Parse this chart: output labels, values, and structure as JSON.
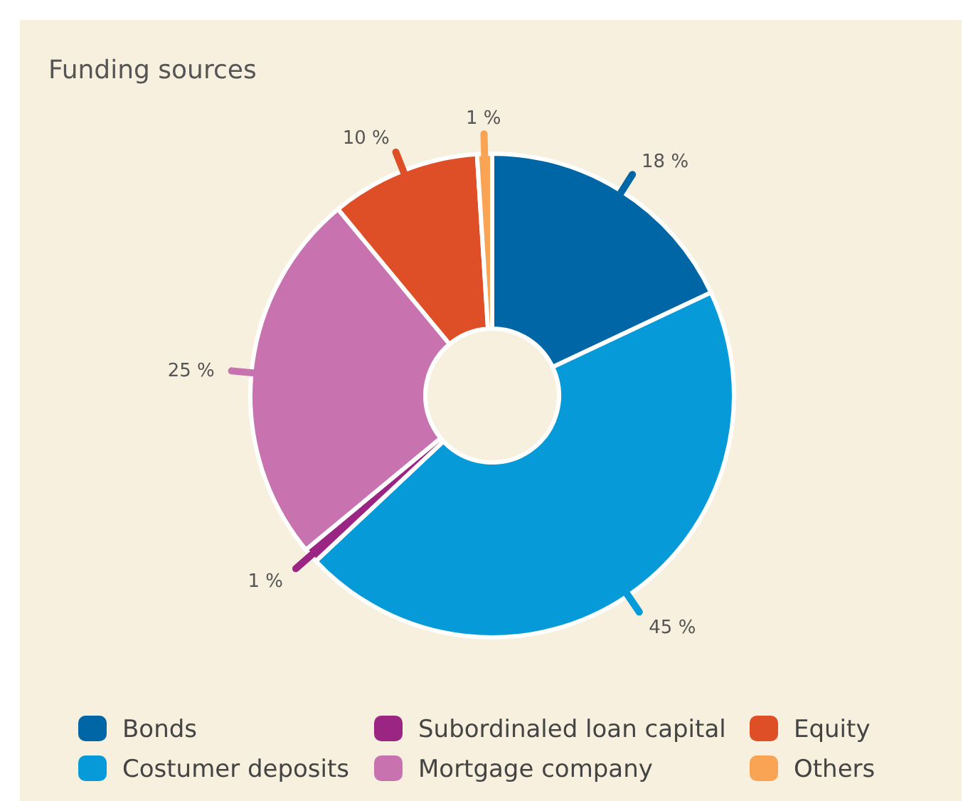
{
  "chart_data": {
    "type": "donut",
    "title": "Funding sources",
    "categories": [
      "Bonds",
      "Costumer deposits",
      "Subordinaled loan capital",
      "Mortgage company",
      "Equity",
      "Others"
    ],
    "values": [
      18,
      45,
      1,
      25,
      10,
      1
    ],
    "colors": [
      "#0066a6",
      "#069bd8",
      "#9b2582",
      "#c872b0",
      "#df4f27",
      "#f9a455"
    ],
    "value_labels": [
      "18 %",
      "45 %",
      "1 %",
      "25 %",
      "10 %",
      "1 %"
    ],
    "legend": "bottom"
  }
}
